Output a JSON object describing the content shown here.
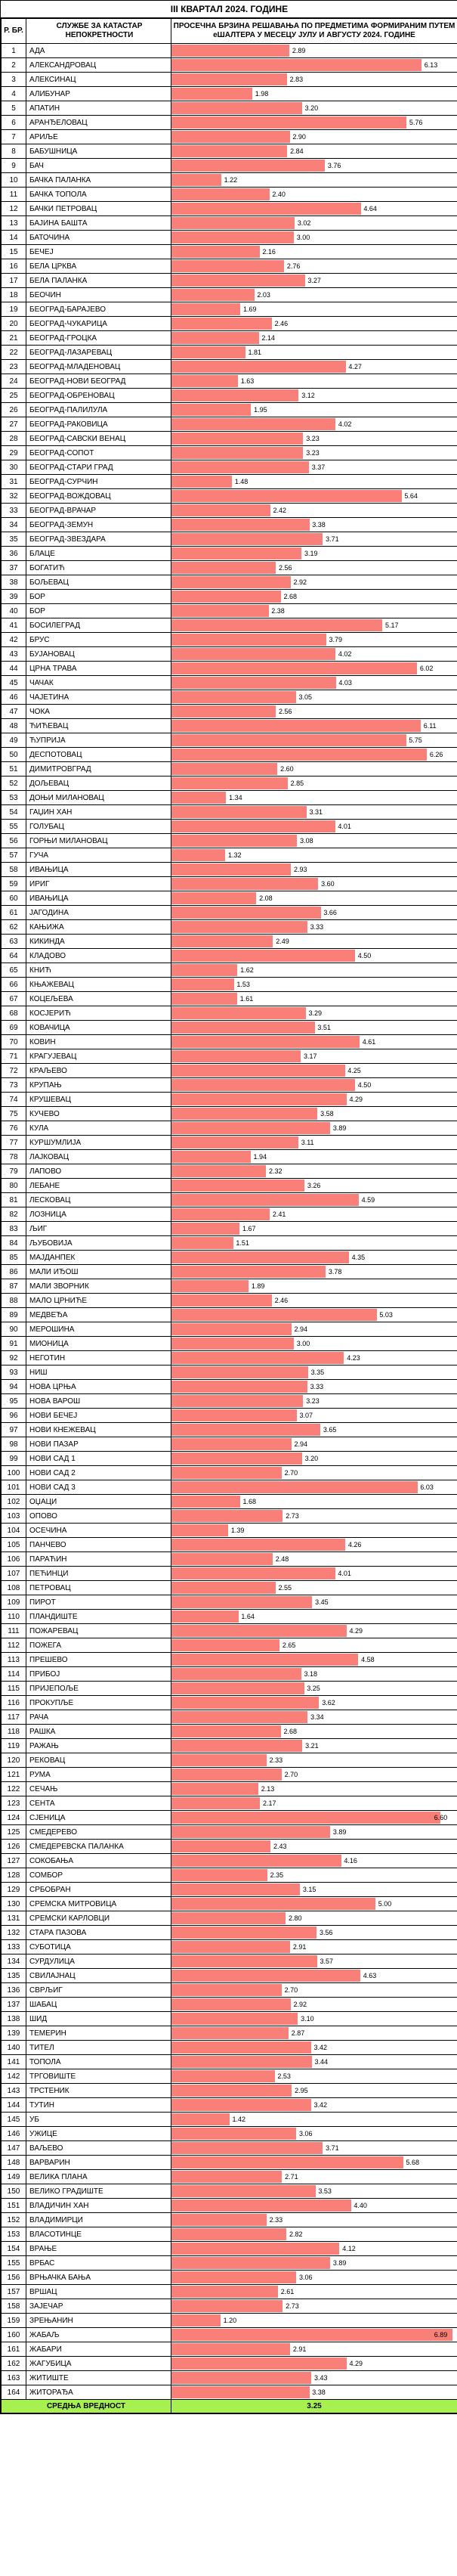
{
  "title": "III КВАРТАЛ 2024. ГОДИНЕ",
  "headers": {
    "num": "Р. БР.",
    "name": "СЛУЖБЕ ЗА КАТАСТАР НЕПОКРЕТНОСТИ",
    "bar": "ПРОСЕЧНА БРЗИНА РЕШАВАЊА ПО ПРЕДМЕТИМА ФОРМИРАНИМ ПУТЕМ еШАЛТЕРА У МЕСЕЦУ ЈУЛУ И АВГУСТУ 2024. ГОДИНЕ"
  },
  "maxValue": 7.0,
  "barColor": "#f88078",
  "avgBg": "#a6f050",
  "average": {
    "label": "СРЕДЊА ВРЕДНОСТ",
    "value": "3.25"
  },
  "rows": [
    {
      "n": 1,
      "name": "АДА",
      "v": 2.89
    },
    {
      "n": 2,
      "name": "АЛЕКСАНДРОВАЦ",
      "v": 6.13
    },
    {
      "n": 3,
      "name": "АЛЕКСИНАЦ",
      "v": 2.83
    },
    {
      "n": 4,
      "name": "АЛИБУНАР",
      "v": 1.98
    },
    {
      "n": 5,
      "name": "АПАТИН",
      "v": 3.2
    },
    {
      "n": 6,
      "name": "АРАНЂЕЛОВАЦ",
      "v": 5.76
    },
    {
      "n": 7,
      "name": "АРИЉЕ",
      "v": 2.9
    },
    {
      "n": 8,
      "name": "БАБУШНИЦА",
      "v": 2.84
    },
    {
      "n": 9,
      "name": "БАЧ",
      "v": 3.76
    },
    {
      "n": 10,
      "name": "БАЧКА ПАЛАНКА",
      "v": 1.22
    },
    {
      "n": 11,
      "name": "БАЧКА ТОПОЛА",
      "v": 2.4
    },
    {
      "n": 12,
      "name": "БАЧКИ ПЕТРОВАЦ",
      "v": 4.64
    },
    {
      "n": 13,
      "name": "БАЈИНА БАШТА",
      "v": 3.02
    },
    {
      "n": 14,
      "name": "БАТОЧИНА",
      "v": 3.0
    },
    {
      "n": 15,
      "name": "БЕЧЕЈ",
      "v": 2.16
    },
    {
      "n": 16,
      "name": "БЕЛА ЦРКВА",
      "v": 2.76
    },
    {
      "n": 17,
      "name": "БЕЛА ПАЛАНКА",
      "v": 3.27
    },
    {
      "n": 18,
      "name": "БЕОЧИН",
      "v": 2.03
    },
    {
      "n": 19,
      "name": "БЕОГРАД-БАРАЈЕВО",
      "v": 1.69
    },
    {
      "n": 20,
      "name": "БЕОГРАД-ЧУКАРИЦА",
      "v": 2.46
    },
    {
      "n": 21,
      "name": "БЕОГРАД-ГРОЦКА",
      "v": 2.14
    },
    {
      "n": 22,
      "name": "БЕОГРАД-ЛАЗАРЕВАЦ",
      "v": 1.81
    },
    {
      "n": 23,
      "name": "БЕОГРАД-МЛАДЕНОВАЦ",
      "v": 4.27
    },
    {
      "n": 24,
      "name": "БЕОГРАД-НОВИ БЕОГРАД",
      "v": 1.63
    },
    {
      "n": 25,
      "name": "БЕОГРАД-ОБРЕНОВАЦ",
      "v": 3.12
    },
    {
      "n": 26,
      "name": "БЕОГРАД-ПАЛИЛУЛА",
      "v": 1.95
    },
    {
      "n": 27,
      "name": "БЕОГРАД-РАКОВИЦА",
      "v": 4.02
    },
    {
      "n": 28,
      "name": "БЕОГРАД-САВСКИ ВЕНАЦ",
      "v": 3.23
    },
    {
      "n": 29,
      "name": "БЕОГРАД-СОПОТ",
      "v": 3.23
    },
    {
      "n": 30,
      "name": "БЕОГРАД-СТАРИ ГРАД",
      "v": 3.37
    },
    {
      "n": 31,
      "name": "БЕОГРАД-СУРЧИН",
      "v": 1.48
    },
    {
      "n": 32,
      "name": "БЕОГРАД-ВОЖДОВАЦ",
      "v": 5.64
    },
    {
      "n": 33,
      "name": "БЕОГРАД-ВРАЧАР",
      "v": 2.42
    },
    {
      "n": 34,
      "name": "БЕОГРАД-ЗЕМУН",
      "v": 3.38
    },
    {
      "n": 35,
      "name": "БЕОГРАД-ЗВЕЗДАРА",
      "v": 3.71
    },
    {
      "n": 36,
      "name": "БЛАЦЕ",
      "v": 3.19
    },
    {
      "n": 37,
      "name": "БОГАТИЋ",
      "v": 2.56
    },
    {
      "n": 38,
      "name": "БОЉЕВАЦ",
      "v": 2.92
    },
    {
      "n": 39,
      "name": "БОР",
      "v": 2.68
    },
    {
      "n": 40,
      "name": "БОР",
      "v": 2.38
    },
    {
      "n": 41,
      "name": "БОСИЛЕГРАД",
      "v": 5.17
    },
    {
      "n": 42,
      "name": "БРУС",
      "v": 3.79
    },
    {
      "n": 43,
      "name": "БУЈАНОВАЦ",
      "v": 4.02
    },
    {
      "n": 44,
      "name": "ЦРНА ТРАВА",
      "v": 6.02
    },
    {
      "n": 45,
      "name": "ЧАЧАК",
      "v": 4.03
    },
    {
      "n": 46,
      "name": "ЧАЈЕТИНА",
      "v": 3.05
    },
    {
      "n": 47,
      "name": "ЧОКА",
      "v": 2.56
    },
    {
      "n": 48,
      "name": "ЋИЋЕВАЦ",
      "v": 6.11
    },
    {
      "n": 49,
      "name": "ЋУПРИЈА",
      "v": 5.75
    },
    {
      "n": 50,
      "name": "ДЕСПОТОВАЦ",
      "v": 6.26
    },
    {
      "n": 51,
      "name": "ДИМИТРОВГРАД",
      "v": 2.6
    },
    {
      "n": 52,
      "name": "ДОЉЕВАЦ",
      "v": 2.85
    },
    {
      "n": 53,
      "name": "ДОЊИ МИЛАНОВАЦ",
      "v": 1.34
    },
    {
      "n": 54,
      "name": "ГАЏИН ХАН",
      "v": 3.31
    },
    {
      "n": 55,
      "name": "ГОЛУБАЦ",
      "v": 4.01
    },
    {
      "n": 56,
      "name": "ГОРЊИ МИЛАНОВАЦ",
      "v": 3.08
    },
    {
      "n": 57,
      "name": "ГУЧА",
      "v": 1.32
    },
    {
      "n": 58,
      "name": "ИВАЊИЦА",
      "v": 2.93
    },
    {
      "n": 59,
      "name": "ИРИГ",
      "v": 3.6
    },
    {
      "n": 60,
      "name": "ИВАЊИЦА",
      "v": 2.08
    },
    {
      "n": 61,
      "name": "ЈАГОДИНА",
      "v": 3.66
    },
    {
      "n": 62,
      "name": "КАЊИЖА",
      "v": 3.33
    },
    {
      "n": 63,
      "name": "КИКИНДА",
      "v": 2.49
    },
    {
      "n": 64,
      "name": "КЛАДОВО",
      "v": 4.5
    },
    {
      "n": 65,
      "name": "КНИЋ",
      "v": 1.62
    },
    {
      "n": 66,
      "name": "КЊАЖЕВАЦ",
      "v": 1.53
    },
    {
      "n": 67,
      "name": "КОЦЕЉЕВА",
      "v": 1.61
    },
    {
      "n": 68,
      "name": "КОСЈЕРИЋ",
      "v": 3.29
    },
    {
      "n": 69,
      "name": "КОВАЧИЦА",
      "v": 3.51
    },
    {
      "n": 70,
      "name": "КОВИН",
      "v": 4.61
    },
    {
      "n": 71,
      "name": "КРАГУЈЕВАЦ",
      "v": 3.17
    },
    {
      "n": 72,
      "name": "КРАЉЕВО",
      "v": 4.25
    },
    {
      "n": 73,
      "name": "КРУПАЊ",
      "v": 4.5
    },
    {
      "n": 74,
      "name": "КРУШЕВАЦ",
      "v": 4.29
    },
    {
      "n": 75,
      "name": "КУЧЕВО",
      "v": 3.58
    },
    {
      "n": 76,
      "name": "КУЛА",
      "v": 3.89
    },
    {
      "n": 77,
      "name": "КУРШУМЛИЈА",
      "v": 3.11
    },
    {
      "n": 78,
      "name": "ЛАЈКОВАЦ",
      "v": 1.94
    },
    {
      "n": 79,
      "name": "ЛАПОВО",
      "v": 2.32
    },
    {
      "n": 80,
      "name": "ЛЕБАНЕ",
      "v": 3.26
    },
    {
      "n": 81,
      "name": "ЛЕСКОВАЦ",
      "v": 4.59
    },
    {
      "n": 82,
      "name": "ЛОЗНИЦА",
      "v": 2.41
    },
    {
      "n": 83,
      "name": "ЉИГ",
      "v": 1.67
    },
    {
      "n": 84,
      "name": "ЉУБОВИЈА",
      "v": 1.51
    },
    {
      "n": 85,
      "name": "МАЈДАНПЕК",
      "v": 4.35
    },
    {
      "n": 86,
      "name": "МАЛИ ИЂОШ",
      "v": 3.78
    },
    {
      "n": 87,
      "name": "МАЛИ ЗВОРНИК",
      "v": 1.89
    },
    {
      "n": 88,
      "name": "МАЛО ЦРНИЋЕ",
      "v": 2.46
    },
    {
      "n": 89,
      "name": "МЕДВЕЂА",
      "v": 5.03
    },
    {
      "n": 90,
      "name": "МЕРОШИНА",
      "v": 2.94
    },
    {
      "n": 91,
      "name": "МИОНИЦА",
      "v": 3.0
    },
    {
      "n": 92,
      "name": "НЕГОТИН",
      "v": 4.23
    },
    {
      "n": 93,
      "name": "НИШ",
      "v": 3.35
    },
    {
      "n": 94,
      "name": "НОВА ЦРЊА",
      "v": 3.33
    },
    {
      "n": 95,
      "name": "НОВА ВАРОШ",
      "v": 3.23
    },
    {
      "n": 96,
      "name": "НОВИ БЕЧЕЈ",
      "v": 3.07
    },
    {
      "n": 97,
      "name": "НОВИ КНЕЖЕВАЦ",
      "v": 3.65
    },
    {
      "n": 98,
      "name": "НОВИ ПАЗАР",
      "v": 2.94
    },
    {
      "n": 99,
      "name": "НОВИ САД 1",
      "v": 3.2
    },
    {
      "n": 100,
      "name": "НОВИ САД 2",
      "v": 2.7
    },
    {
      "n": 101,
      "name": "НОВИ САД 3",
      "v": 6.03
    },
    {
      "n": 102,
      "name": "ОЏАЦИ",
      "v": 1.68
    },
    {
      "n": 103,
      "name": "ОПОВО",
      "v": 2.73
    },
    {
      "n": 104,
      "name": "ОСЕЧИНА",
      "v": 1.39
    },
    {
      "n": 105,
      "name": "ПАНЧЕВО",
      "v": 4.26
    },
    {
      "n": 106,
      "name": "ПАРАЋИН",
      "v": 2.48
    },
    {
      "n": 107,
      "name": "ПЕЋИНЦИ",
      "v": 4.01
    },
    {
      "n": 108,
      "name": "ПЕТРОВАЦ",
      "v": 2.55
    },
    {
      "n": 109,
      "name": "ПИРОТ",
      "v": 3.45
    },
    {
      "n": 110,
      "name": "ПЛАНДИШТЕ",
      "v": 1.64
    },
    {
      "n": 111,
      "name": "ПОЖАРЕВАЦ",
      "v": 4.29
    },
    {
      "n": 112,
      "name": "ПОЖЕГА",
      "v": 2.65
    },
    {
      "n": 113,
      "name": "ПРЕШЕВО",
      "v": 4.58
    },
    {
      "n": 114,
      "name": "ПРИБОЈ",
      "v": 3.18
    },
    {
      "n": 115,
      "name": "ПРИЈЕПОЉЕ",
      "v": 3.25
    },
    {
      "n": 116,
      "name": "ПРОКУПЉЕ",
      "v": 3.62
    },
    {
      "n": 117,
      "name": "РАЧА",
      "v": 3.34
    },
    {
      "n": 118,
      "name": "РАШКА",
      "v": 2.68
    },
    {
      "n": 119,
      "name": "РАЖАЊ",
      "v": 3.21
    },
    {
      "n": 120,
      "name": "РЕКОВАЦ",
      "v": 2.33
    },
    {
      "n": 121,
      "name": "РУМА",
      "v": 2.7
    },
    {
      "n": 122,
      "name": "СЕЧАЊ",
      "v": 2.13
    },
    {
      "n": 123,
      "name": "СЕНТА",
      "v": 2.17
    },
    {
      "n": 124,
      "name": "СЈЕНИЦА",
      "v": 6.6
    },
    {
      "n": 125,
      "name": "СМЕДЕРЕВО",
      "v": 3.89
    },
    {
      "n": 126,
      "name": "СМЕДЕРЕВСКА ПАЛАНКА",
      "v": 2.43
    },
    {
      "n": 127,
      "name": "СОКОБАЊА",
      "v": 4.16
    },
    {
      "n": 128,
      "name": "СОМБОР",
      "v": 2.35
    },
    {
      "n": 129,
      "name": "СРБОБРАН",
      "v": 3.15
    },
    {
      "n": 130,
      "name": "СРЕМСКА МИТРОВИЦА",
      "v": 5.0
    },
    {
      "n": 131,
      "name": "СРЕМСКИ КАРЛОВЦИ",
      "v": 2.8
    },
    {
      "n": 132,
      "name": "СТАРА ПАЗОВА",
      "v": 3.56
    },
    {
      "n": 133,
      "name": "СУБОТИЦА",
      "v": 2.91
    },
    {
      "n": 134,
      "name": "СУРДУЛИЦА",
      "v": 3.57
    },
    {
      "n": 135,
      "name": "СВИЛАЈНАЦ",
      "v": 4.63
    },
    {
      "n": 136,
      "name": "СВРЉИГ",
      "v": 2.7
    },
    {
      "n": 137,
      "name": "ШАБАЦ",
      "v": 2.92
    },
    {
      "n": 138,
      "name": "ШИД",
      "v": 3.1
    },
    {
      "n": 139,
      "name": "ТЕМЕРИН",
      "v": 2.87
    },
    {
      "n": 140,
      "name": "ТИТЕЛ",
      "v": 3.42
    },
    {
      "n": 141,
      "name": "ТОПОЛА",
      "v": 3.44
    },
    {
      "n": 142,
      "name": "ТРГОВИШТЕ",
      "v": 2.53
    },
    {
      "n": 143,
      "name": "ТРСТЕНИК",
      "v": 2.95
    },
    {
      "n": 144,
      "name": "ТУТИН",
      "v": 3.42
    },
    {
      "n": 145,
      "name": "УБ",
      "v": 1.42
    },
    {
      "n": 146,
      "name": "УЖИЦЕ",
      "v": 3.06
    },
    {
      "n": 147,
      "name": "ВАЉЕВО",
      "v": 3.71
    },
    {
      "n": 148,
      "name": "ВАРВАРИН",
      "v": 5.68
    },
    {
      "n": 149,
      "name": "ВЕЛИКА ПЛАНА",
      "v": 2.71
    },
    {
      "n": 150,
      "name": "ВЕЛИКО ГРАДИШТЕ",
      "v": 3.53
    },
    {
      "n": 151,
      "name": "ВЛАДИЧИН ХАН",
      "v": 4.4
    },
    {
      "n": 152,
      "name": "ВЛАДИМИРЦИ",
      "v": 2.33
    },
    {
      "n": 153,
      "name": "ВЛАСОТИНЦЕ",
      "v": 2.82
    },
    {
      "n": 154,
      "name": "ВРАЊЕ",
      "v": 4.12
    },
    {
      "n": 155,
      "name": "ВРБАС",
      "v": 3.89
    },
    {
      "n": 156,
      "name": "ВРЊАЧКА БАЊА",
      "v": 3.06
    },
    {
      "n": 157,
      "name": "ВРШАЦ",
      "v": 2.61
    },
    {
      "n": 158,
      "name": "ЗАЈЕЧАР",
      "v": 2.73
    },
    {
      "n": 159,
      "name": "ЗРЕЊАНИН",
      "v": 1.2
    },
    {
      "n": 160,
      "name": "ЖАБАЉ",
      "v": 6.89
    },
    {
      "n": 161,
      "name": "ЖАБАРИ",
      "v": 2.91
    },
    {
      "n": 162,
      "name": "ЖАГУБИЦА",
      "v": 4.29
    },
    {
      "n": 163,
      "name": "ЖИТИШТЕ",
      "v": 3.43
    },
    {
      "n": 164,
      "name": "ЖИТОРАЂА",
      "v": 3.38
    }
  ]
}
